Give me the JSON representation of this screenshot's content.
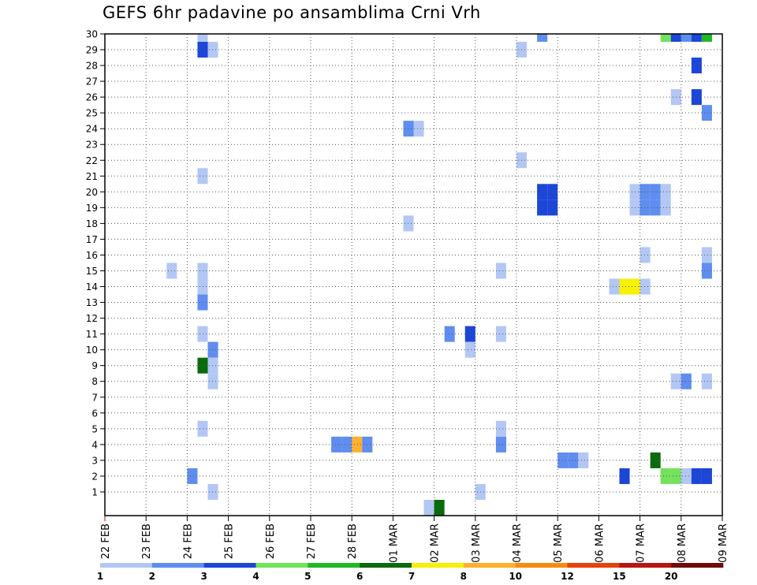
{
  "chart_data": {
    "type": "heatmap",
    "title": "GEFS 6hr padavine po ansamblima Crni Vrh",
    "xlabel": "",
    "ylabel": "",
    "x_tick_labels": [
      "22 FEB",
      "23 FEB",
      "24 FEB",
      "25 FEB",
      "26 FEB",
      "27 FEB",
      "28 FEB",
      "01 MAR",
      "02 MAR",
      "03 MAR",
      "04 MAR",
      "05 MAR",
      "06 MAR",
      "07 MAR",
      "08 MAR",
      "09 MAR"
    ],
    "y_tick_labels": [
      "1",
      "2",
      "3",
      "4",
      "5",
      "6",
      "7",
      "8",
      "9",
      "10",
      "11",
      "12",
      "13",
      "14",
      "15",
      "16",
      "17",
      "18",
      "19",
      "20",
      "21",
      "22",
      "23",
      "24",
      "25",
      "26",
      "27",
      "28",
      "29",
      "30"
    ],
    "x_range_days": [
      0,
      15
    ],
    "y_range_members": [
      0,
      30
    ],
    "time_step_hours": 6,
    "grid": true,
    "legend": "colorbar-bottom",
    "colorbar": {
      "levels": [
        "1",
        "2",
        "3",
        "4",
        "5",
        "6",
        "7",
        "8",
        "10",
        "12",
        "15",
        "20"
      ],
      "colors": [
        "#b3c7f5",
        "#5f8df0",
        "#1b46d8",
        "#72e35a",
        "#20b826",
        "#0a6b0c",
        "#f7f007",
        "#ffb02e",
        "#f78a10",
        "#e5420d",
        "#b81612",
        "#6e0b0b"
      ]
    },
    "cells": [
      {
        "m": 30,
        "s": 9,
        "c": 0
      },
      {
        "m": 30,
        "s": 42,
        "c": 1
      },
      {
        "m": 30,
        "s": 54,
        "c": 3
      },
      {
        "m": 30,
        "s": 55,
        "c": 2
      },
      {
        "m": 30,
        "s": 56,
        "c": 1
      },
      {
        "m": 30,
        "s": 57,
        "c": 2
      },
      {
        "m": 30,
        "s": 58,
        "c": 4
      },
      {
        "m": 29,
        "s": 9,
        "c": 2
      },
      {
        "m": 29,
        "s": 10,
        "c": 0
      },
      {
        "m": 29,
        "s": 40,
        "c": 0
      },
      {
        "m": 28,
        "s": 57,
        "c": 2
      },
      {
        "m": 26,
        "s": 55,
        "c": 0
      },
      {
        "m": 26,
        "s": 57,
        "c": 2
      },
      {
        "m": 25,
        "s": 58,
        "c": 1
      },
      {
        "m": 24,
        "s": 29,
        "c": 1
      },
      {
        "m": 24,
        "s": 30,
        "c": 0
      },
      {
        "m": 22,
        "s": 40,
        "c": 0
      },
      {
        "m": 21,
        "s": 9,
        "c": 0
      },
      {
        "m": 20,
        "s": 42,
        "c": 2
      },
      {
        "m": 20,
        "s": 43,
        "c": 2
      },
      {
        "m": 20,
        "s": 51,
        "c": 0
      },
      {
        "m": 20,
        "s": 52,
        "c": 1
      },
      {
        "m": 20,
        "s": 53,
        "c": 1
      },
      {
        "m": 20,
        "s": 54,
        "c": 0
      },
      {
        "m": 19,
        "s": 42,
        "c": 2
      },
      {
        "m": 19,
        "s": 43,
        "c": 2
      },
      {
        "m": 19,
        "s": 51,
        "c": 0
      },
      {
        "m": 19,
        "s": 52,
        "c": 1
      },
      {
        "m": 19,
        "s": 53,
        "c": 1
      },
      {
        "m": 19,
        "s": 54,
        "c": 0
      },
      {
        "m": 18,
        "s": 29,
        "c": 0
      },
      {
        "m": 16,
        "s": 52,
        "c": 0
      },
      {
        "m": 16,
        "s": 58,
        "c": 0
      },
      {
        "m": 15,
        "s": 6,
        "c": 0
      },
      {
        "m": 15,
        "s": 9,
        "c": 0
      },
      {
        "m": 15,
        "s": 38,
        "c": 0
      },
      {
        "m": 15,
        "s": 58,
        "c": 1
      },
      {
        "m": 14,
        "s": 9,
        "c": 0
      },
      {
        "m": 14,
        "s": 49,
        "c": 0
      },
      {
        "m": 14,
        "s": 50,
        "c": 6
      },
      {
        "m": 14,
        "s": 51,
        "c": 6
      },
      {
        "m": 14,
        "s": 52,
        "c": 0
      },
      {
        "m": 13,
        "s": 9,
        "c": 1
      },
      {
        "m": 11,
        "s": 9,
        "c": 0
      },
      {
        "m": 11,
        "s": 33,
        "c": 1
      },
      {
        "m": 11,
        "s": 35,
        "c": 2
      },
      {
        "m": 11,
        "s": 38,
        "c": 0
      },
      {
        "m": 10,
        "s": 10,
        "c": 1
      },
      {
        "m": 10,
        "s": 35,
        "c": 0
      },
      {
        "m": 9,
        "s": 9,
        "c": 5
      },
      {
        "m": 9,
        "s": 10,
        "c": 0
      },
      {
        "m": 8,
        "s": 10,
        "c": 0
      },
      {
        "m": 8,
        "s": 55,
        "c": 0
      },
      {
        "m": 8,
        "s": 56,
        "c": 1
      },
      {
        "m": 8,
        "s": 58,
        "c": 0
      },
      {
        "m": 5,
        "s": 9,
        "c": 0
      },
      {
        "m": 5,
        "s": 38,
        "c": 0
      },
      {
        "m": 4,
        "s": 22,
        "c": 1
      },
      {
        "m": 4,
        "s": 23,
        "c": 1
      },
      {
        "m": 4,
        "s": 24,
        "c": 7
      },
      {
        "m": 4,
        "s": 25,
        "c": 1
      },
      {
        "m": 4,
        "s": 38,
        "c": 1
      },
      {
        "m": 3,
        "s": 44,
        "c": 1
      },
      {
        "m": 3,
        "s": 45,
        "c": 1
      },
      {
        "m": 3,
        "s": 46,
        "c": 0
      },
      {
        "m": 3,
        "s": 53,
        "c": 5
      },
      {
        "m": 2,
        "s": 8,
        "c": 1
      },
      {
        "m": 2,
        "s": 50,
        "c": 2
      },
      {
        "m": 2,
        "s": 54,
        "c": 3
      },
      {
        "m": 2,
        "s": 55,
        "c": 3
      },
      {
        "m": 2,
        "s": 56,
        "c": 0
      },
      {
        "m": 2,
        "s": 57,
        "c": 2
      },
      {
        "m": 2,
        "s": 58,
        "c": 2
      },
      {
        "m": 1,
        "s": 10,
        "c": 0
      },
      {
        "m": 1,
        "s": 36,
        "c": 0
      },
      {
        "m": 0,
        "s": 31,
        "c": 0
      },
      {
        "m": 0,
        "s": 32,
        "c": 5
      }
    ]
  }
}
